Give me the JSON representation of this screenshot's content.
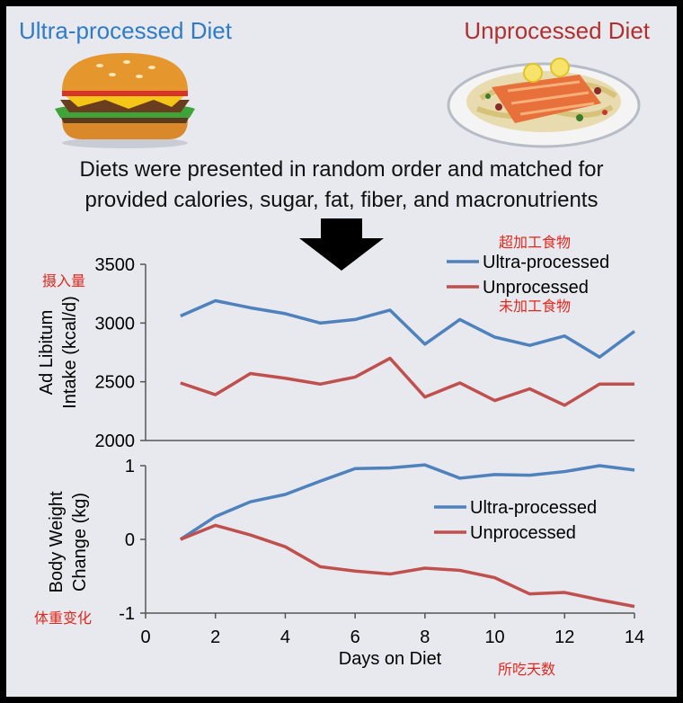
{
  "header": {
    "left_title": "Ultra-processed Diet",
    "right_title": "Unprocessed Diet",
    "caption_line1": "Diets were presented in random order and matched for",
    "caption_line2": "provided calories, sugar, fat, fiber, and macronutrients",
    "left_image": "hamburger-icon",
    "right_image": "salmon-plate-icon"
  },
  "colors": {
    "ultra": "#4f81bd",
    "unprocessed": "#c0504d",
    "annotation": "#e0281e",
    "title_blue": "#2f7bc8",
    "title_red": "#b03030"
  },
  "annotations": {
    "ultra_cn": "超加工食物",
    "unprocessed_cn": "未加工食物",
    "intake_cn": "摄入量",
    "weight_cn": "体重变化",
    "days_cn": "所吃天数"
  },
  "chart_data": [
    {
      "type": "line",
      "ylabel": "Ad Libitum Intake (kcal/d)",
      "ylim": [
        2000,
        3500
      ],
      "yticks": [
        2000,
        2500,
        3000,
        3500
      ],
      "x": [
        1,
        2,
        3,
        4,
        5,
        6,
        7,
        8,
        9,
        10,
        11,
        12,
        13,
        14
      ],
      "series": [
        {
          "name": "Ultra-processed",
          "values": [
            3060,
            3190,
            3130,
            3080,
            3000,
            3030,
            3110,
            2820,
            3030,
            2880,
            2810,
            2890,
            2710,
            2930
          ]
        },
        {
          "name": "Unprocessed",
          "values": [
            2490,
            2390,
            2570,
            2530,
            2480,
            2540,
            2700,
            2370,
            2490,
            2340,
            2440,
            2300,
            2480,
            2480
          ]
        }
      ],
      "legend": "top-right"
    },
    {
      "type": "line",
      "ylabel": "Body Weight Change (kg)",
      "xlabel": "Days on Diet",
      "ylim": [
        -1,
        1
      ],
      "yticks": [
        -1,
        0,
        1
      ],
      "xlim": [
        0,
        14
      ],
      "xticks": [
        0,
        2,
        4,
        6,
        8,
        10,
        12,
        14
      ],
      "x": [
        1,
        2,
        3,
        4,
        5,
        6,
        7,
        8,
        9,
        10,
        11,
        12,
        13,
        14
      ],
      "series": [
        {
          "name": "Ultra-processed",
          "values": [
            0,
            0.31,
            0.51,
            0.61,
            0.79,
            0.96,
            0.97,
            1.01,
            0.83,
            0.88,
            0.87,
            0.92,
            1.0,
            0.94
          ]
        },
        {
          "name": "Unprocessed",
          "values": [
            0,
            0.19,
            0.06,
            -0.1,
            -0.37,
            -0.43,
            -0.47,
            -0.39,
            -0.42,
            -0.52,
            -0.74,
            -0.72,
            -0.82,
            -0.91
          ]
        }
      ],
      "legend": "right"
    }
  ]
}
